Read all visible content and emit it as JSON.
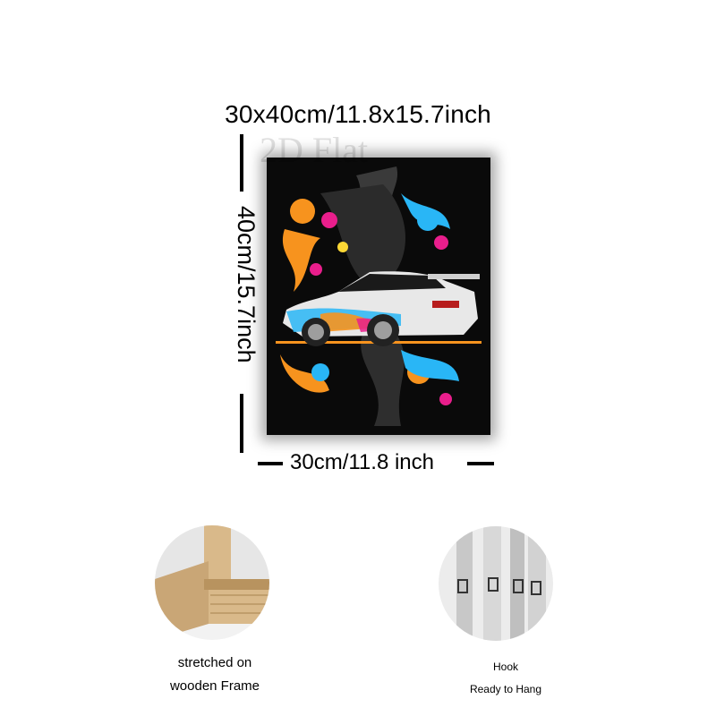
{
  "dimensions": {
    "overall_label": "30x40cm/11.8x15.7inch",
    "height_label": "40cm/15.7inch",
    "width_label": "30cm/11.8 inch",
    "watermark": "2D Flat"
  },
  "features": [
    {
      "line1": "stretched on",
      "line2": "wooden Frame"
    },
    {
      "line1": "Hook",
      "line2": "Ready to Hang"
    }
  ],
  "colors": {
    "canvas_bg": "#0a0a0a",
    "orange": "#f7931e",
    "cyan": "#29b6f6",
    "magenta": "#e91e8c",
    "wood": "#d9b98a"
  }
}
